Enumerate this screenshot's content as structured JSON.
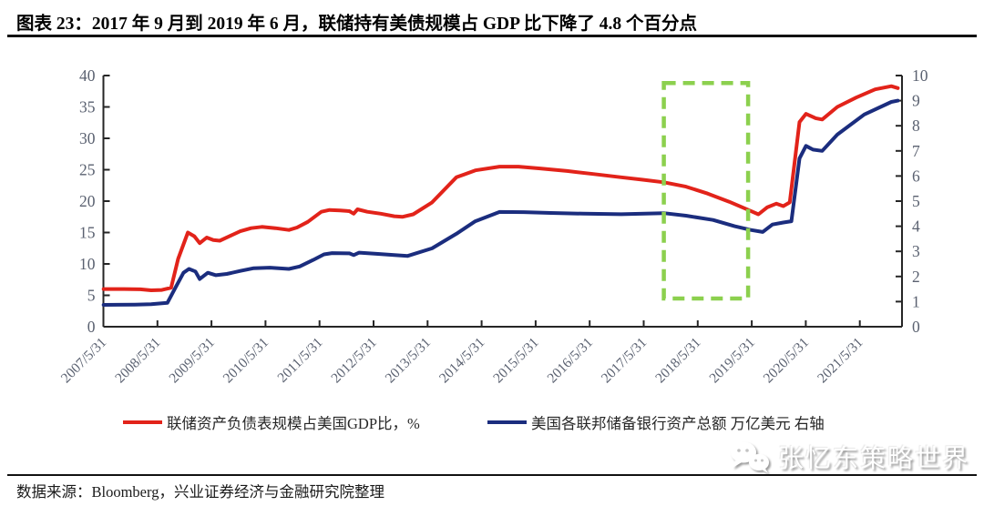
{
  "header": {
    "title": "图表 23：2017 年 9 月到 2019 年 6 月，联储持有美债规模占 GDP 比下降了 4.8 个百分点"
  },
  "footer": {
    "source": "数据来源：Bloomberg，兴业证券经济与金融研究院整理"
  },
  "watermark": {
    "text": "张忆东策略世界",
    "icon": "wechat-bubbles-icon"
  },
  "chart_data": {
    "type": "line",
    "grid": false,
    "legend_position": "bottom",
    "axis_label_color": "#5a6170",
    "axis_line_color": "#262626",
    "left_axis": {
      "min": 0,
      "max": 40,
      "step": 5,
      "tick_labels": [
        "0",
        "5",
        "10",
        "15",
        "20",
        "25",
        "30",
        "35",
        "40"
      ]
    },
    "right_axis": {
      "min": 0,
      "max": 10,
      "step": 1,
      "tick_labels": [
        "0",
        "1",
        "2",
        "3",
        "4",
        "5",
        "6",
        "7",
        "8",
        "9",
        "10"
      ]
    },
    "x_tick_labels": [
      "2007/5/31",
      "2008/5/31",
      "2009/5/31",
      "2010/5/31",
      "2011/5/31",
      "2012/5/31",
      "2013/5/31",
      "2014/5/31",
      "2015/5/31",
      "2016/5/31",
      "2017/5/31",
      "2018/5/31",
      "2019/5/31",
      "2020/5/31",
      "2021/5/31"
    ],
    "x_start_year": 2007.417,
    "x_end_year": 2022.12,
    "series": [
      {
        "name": "联储资产负债表规模占美国GDP比，%",
        "color": "#E2231A",
        "axis": "left",
        "points": [
          [
            2007.42,
            6.0
          ],
          [
            2007.8,
            6.0
          ],
          [
            2008.1,
            5.95
          ],
          [
            2008.3,
            5.8
          ],
          [
            2008.5,
            5.85
          ],
          [
            2008.67,
            6.2
          ],
          [
            2008.8,
            10.8
          ],
          [
            2008.98,
            15.0
          ],
          [
            2009.1,
            14.4
          ],
          [
            2009.2,
            13.3
          ],
          [
            2009.33,
            14.2
          ],
          [
            2009.45,
            13.8
          ],
          [
            2009.57,
            13.7
          ],
          [
            2009.75,
            14.4
          ],
          [
            2009.95,
            15.2
          ],
          [
            2010.15,
            15.7
          ],
          [
            2010.35,
            15.9
          ],
          [
            2010.6,
            15.7
          ],
          [
            2010.85,
            15.4
          ],
          [
            2011.0,
            15.8
          ],
          [
            2011.2,
            16.7
          ],
          [
            2011.45,
            18.3
          ],
          [
            2011.6,
            18.6
          ],
          [
            2011.8,
            18.5
          ],
          [
            2011.97,
            18.4
          ],
          [
            2012.05,
            18.0
          ],
          [
            2012.12,
            18.7
          ],
          [
            2012.3,
            18.3
          ],
          [
            2012.55,
            18.0
          ],
          [
            2012.8,
            17.6
          ],
          [
            2012.95,
            17.5
          ],
          [
            2013.15,
            17.9
          ],
          [
            2013.5,
            19.8
          ],
          [
            2013.95,
            23.8
          ],
          [
            2014.3,
            24.9
          ],
          [
            2014.75,
            25.5
          ],
          [
            2015.1,
            25.5
          ],
          [
            2015.5,
            25.2
          ],
          [
            2016.0,
            24.8
          ],
          [
            2016.5,
            24.3
          ],
          [
            2017.0,
            23.8
          ],
          [
            2017.4,
            23.4
          ],
          [
            2017.79,
            23.0
          ],
          [
            2018.2,
            22.3
          ],
          [
            2018.6,
            21.2
          ],
          [
            2019.0,
            19.9
          ],
          [
            2019.3,
            18.8
          ],
          [
            2019.54,
            17.9
          ],
          [
            2019.7,
            19.0
          ],
          [
            2019.87,
            19.6
          ],
          [
            2020.0,
            19.2
          ],
          [
            2020.12,
            19.8
          ],
          [
            2020.3,
            32.6
          ],
          [
            2020.42,
            33.9
          ],
          [
            2020.6,
            33.2
          ],
          [
            2020.72,
            33.0
          ],
          [
            2021.0,
            35.0
          ],
          [
            2021.35,
            36.5
          ],
          [
            2021.7,
            37.8
          ],
          [
            2022.0,
            38.3
          ],
          [
            2022.12,
            38.0
          ]
        ]
      },
      {
        "name": "美国各联邦储备银行资产总额 万亿美元 右轴",
        "color": "#1B2D7E",
        "axis": "right",
        "points": [
          [
            2007.42,
            0.87
          ],
          [
            2008.0,
            0.88
          ],
          [
            2008.3,
            0.9
          ],
          [
            2008.6,
            0.95
          ],
          [
            2008.75,
            1.55
          ],
          [
            2008.9,
            2.15
          ],
          [
            2009.0,
            2.3
          ],
          [
            2009.12,
            2.2
          ],
          [
            2009.2,
            1.9
          ],
          [
            2009.35,
            2.15
          ],
          [
            2009.5,
            2.05
          ],
          [
            2009.7,
            2.1
          ],
          [
            2009.95,
            2.22
          ],
          [
            2010.2,
            2.33
          ],
          [
            2010.5,
            2.35
          ],
          [
            2010.85,
            2.3
          ],
          [
            2011.05,
            2.4
          ],
          [
            2011.3,
            2.66
          ],
          [
            2011.5,
            2.88
          ],
          [
            2011.65,
            2.93
          ],
          [
            2011.97,
            2.92
          ],
          [
            2012.05,
            2.85
          ],
          [
            2012.15,
            2.95
          ],
          [
            2012.5,
            2.9
          ],
          [
            2012.8,
            2.85
          ],
          [
            2013.05,
            2.82
          ],
          [
            2013.5,
            3.12
          ],
          [
            2013.95,
            3.7
          ],
          [
            2014.3,
            4.2
          ],
          [
            2014.75,
            4.57
          ],
          [
            2015.2,
            4.56
          ],
          [
            2015.7,
            4.53
          ],
          [
            2016.3,
            4.5
          ],
          [
            2017.0,
            4.48
          ],
          [
            2017.79,
            4.52
          ],
          [
            2018.2,
            4.42
          ],
          [
            2018.7,
            4.25
          ],
          [
            2019.1,
            4.0
          ],
          [
            2019.4,
            3.85
          ],
          [
            2019.62,
            3.77
          ],
          [
            2019.8,
            4.07
          ],
          [
            2020.0,
            4.15
          ],
          [
            2020.15,
            4.2
          ],
          [
            2020.3,
            6.7
          ],
          [
            2020.42,
            7.2
          ],
          [
            2020.55,
            7.05
          ],
          [
            2020.72,
            7.0
          ],
          [
            2021.0,
            7.65
          ],
          [
            2021.5,
            8.45
          ],
          [
            2022.0,
            8.95
          ],
          [
            2022.12,
            9.0
          ]
        ]
      }
    ],
    "highlight_box": {
      "color": "#8CD04E",
      "style": "dashed",
      "x_from_year": 2017.79,
      "x_to_year": 2019.35,
      "top_value_left_axis": 38.8,
      "bottom_value_left_axis": 4.5
    }
  }
}
